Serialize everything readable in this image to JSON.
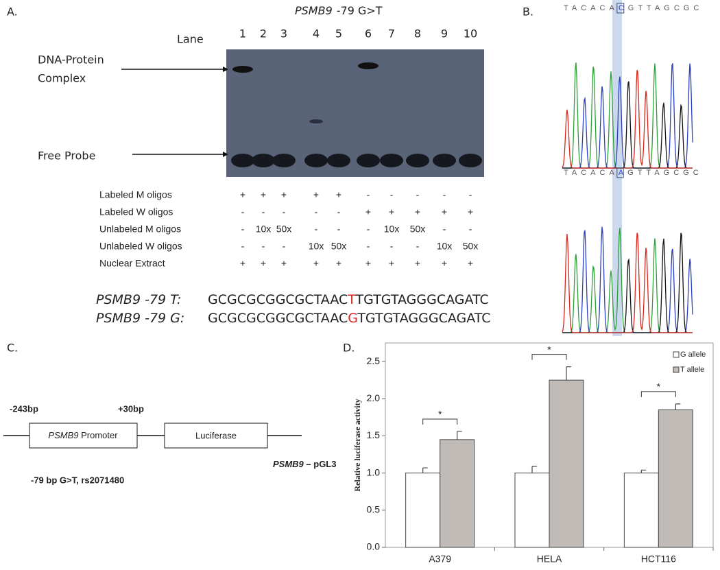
{
  "panel_a": {
    "label": "A.",
    "gene": "PSMB9",
    "variant": "-79 G>T",
    "lane_title": "Lane",
    "lanes": [
      "1",
      "2",
      "3",
      "4",
      "5",
      "6",
      "7",
      "8",
      "9",
      "10"
    ],
    "complex_label": [
      "DNA-Protein",
      "Complex"
    ],
    "free_probe_label": "Free Probe",
    "conditions": [
      {
        "label": "Labeled M oligos",
        "cells": [
          "+",
          "+",
          "+",
          "+",
          "+",
          "-",
          "-",
          "-",
          "-",
          "-"
        ]
      },
      {
        "label": "Labeled W oligos",
        "cells": [
          "-",
          "-",
          "-",
          "-",
          "-",
          "+",
          "+",
          "+",
          "+",
          "+"
        ]
      },
      {
        "label": "Unlabeled M oligos",
        "cells": [
          "-",
          "10x",
          "50x",
          "-",
          "-",
          "-",
          "10x",
          "50x",
          "-",
          "-"
        ]
      },
      {
        "label": "Unlabeled W oligos",
        "cells": [
          "-",
          "-",
          "-",
          "10x",
          "50x",
          "-",
          "-",
          "-",
          "10x",
          "50x"
        ]
      },
      {
        "label": "Nuclear Extract",
        "cells": [
          "+",
          "+",
          "+",
          "+",
          "+",
          "+",
          "+",
          "+",
          "+",
          "+"
        ]
      }
    ],
    "sequences": [
      {
        "gene": "PSMB9",
        "allele": " -79 T:",
        "before": "GCGCGCGGCGCTAAC",
        "snp": "T",
        "after": "TGTGTAGGGCAGATC"
      },
      {
        "gene": "PSMB9",
        "allele": " -79 G:",
        "before": "GCGCGCGGCGCTAAC",
        "snp": "G",
        "after": "TGTGTAGGGCAGATC"
      }
    ]
  },
  "panel_b": {
    "label": "B.",
    "traces": [
      {
        "before": "TACACA",
        "snp": "C",
        "after": "GTTAGCGC"
      },
      {
        "before": "TACACA",
        "snp": "A",
        "after": "GTTAGCGC"
      }
    ]
  },
  "panel_c": {
    "label": "C.",
    "start": "-243bp",
    "end": "+30bp",
    "promoter_gene": "PSMB9",
    "promoter_word": " Promoter",
    "reporter": "Luciferase",
    "construct_gene": "PSMB9",
    "construct_suffix": " – pGL3",
    "snp_note": "-79 bp G>T, rs2071480"
  },
  "chart_data": {
    "type": "bar",
    "label": "D.",
    "ylabel": "Relative luciferase activity",
    "categories": [
      "A379",
      "HELA",
      "HCT116"
    ],
    "series": [
      {
        "name": "G allele",
        "color": "#ffffff",
        "values": [
          1.0,
          1.0,
          1.0
        ],
        "errors": [
          0.07,
          0.09,
          0.04
        ]
      },
      {
        "name": "T allele",
        "color": "#c0bbb6",
        "values": [
          1.45,
          2.25,
          1.85
        ],
        "errors": [
          0.11,
          0.18,
          0.08
        ]
      }
    ],
    "annotations": [
      "*",
      "*",
      "*"
    ],
    "ylim": [
      0,
      2.75
    ],
    "yticks": [
      {
        "value": 0,
        "label": "0.0"
      },
      {
        "value": 0.5,
        "label": "0.5"
      },
      {
        "value": 1,
        "label": "1.0"
      },
      {
        "value": 1.5,
        "label": "1.5"
      },
      {
        "value": 2,
        "label": "2.0"
      },
      {
        "value": 2.5,
        "label": "2.5"
      }
    ],
    "legend": "top-right",
    "grid": false
  }
}
